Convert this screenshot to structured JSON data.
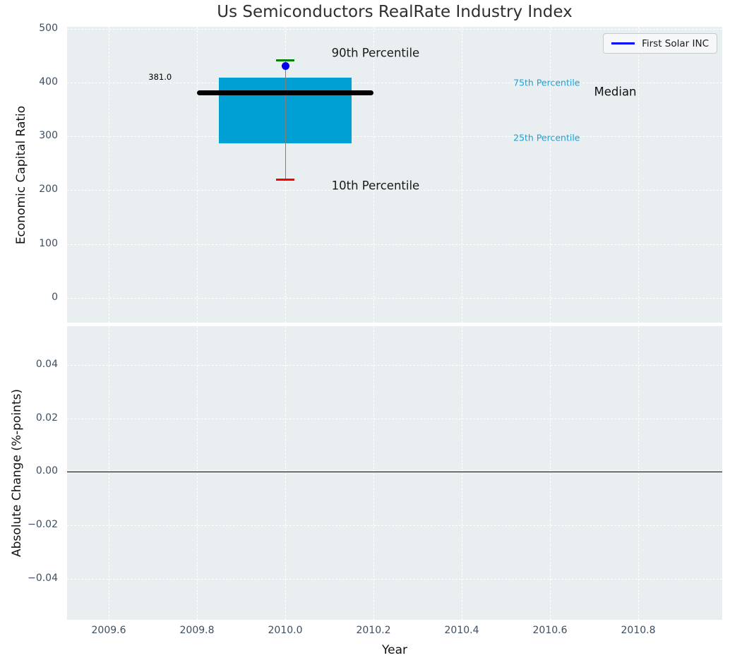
{
  "chart_data": {
    "type": "boxplot",
    "title": "Us Semiconductors RealRate Industry Index",
    "xlabel": "Year",
    "xlim": [
      2009.5056,
      2010.9904
    ],
    "xticks": [
      {
        "v": 2009.6,
        "label": "2009.6"
      },
      {
        "v": 2009.8,
        "label": "2009.8"
      },
      {
        "v": 2010.0,
        "label": "2010.0"
      },
      {
        "v": 2010.2,
        "label": "2010.2"
      },
      {
        "v": 2010.4,
        "label": "2010.4"
      },
      {
        "v": 2010.6,
        "label": "2010.6"
      },
      {
        "v": 2010.8,
        "label": "2010.8"
      }
    ],
    "legend": {
      "label": "First Solar INC",
      "line_color": "#0000ff",
      "position": "upper-right"
    },
    "style": {
      "axes_bg": "#e9eef0",
      "grid_color": "#ffffff",
      "tick_color": "#3d4e63",
      "label_color": "#111111"
    },
    "subplots": [
      {
        "name": "economic-capital-ratio",
        "ylabel": "Economic Capital Ratio",
        "ylim": [
          -45.9,
          503.3
        ],
        "yticks": [
          {
            "v": 0,
            "label": "0"
          },
          {
            "v": 100,
            "label": "100"
          },
          {
            "v": 200,
            "label": "200"
          },
          {
            "v": 300,
            "label": "300"
          },
          {
            "v": 400,
            "label": "400"
          },
          {
            "v": 500,
            "label": "500"
          }
        ],
        "boxplot": {
          "x": 2010.0,
          "box_width": 0.3,
          "median_width": 0.4,
          "cap_width": 0.042,
          "p10": 219,
          "p25": 287,
          "median": 381.0,
          "p75": 409,
          "p90": 441,
          "box_color": "#009fd4",
          "median_color": "#000000",
          "whisker_color": "#808080",
          "p90_cap_color": "#008000",
          "p10_cap_color": "#ff0000"
        },
        "company_point": {
          "label": "First Solar INC",
          "x": 2010.0,
          "y": 430,
          "color": "#0000ee"
        },
        "annotations": [
          {
            "text": "381.0",
            "x": 2009.69,
            "y": 410,
            "color": "#000000",
            "size": 11.5
          },
          {
            "text": "90th Percentile",
            "x": 2010.105,
            "y": 455,
            "color": "#1a1a1a",
            "size": 16.5
          },
          {
            "text": "10th Percentile",
            "x": 2010.105,
            "y": 208,
            "color": "#1a1a1a",
            "size": 16.5
          },
          {
            "text": "75th Percentile",
            "x": 2010.517,
            "y": 400,
            "color": "#1f9fd4",
            "size": 12.5
          },
          {
            "text": "25th Percentile",
            "x": 2010.517,
            "y": 297,
            "color": "#1f9fd4",
            "size": 12.5
          },
          {
            "text": "Median",
            "x": 2010.7,
            "y": 383,
            "color": "#111111",
            "size": 16.5
          }
        ]
      },
      {
        "name": "absolute-change",
        "ylabel": "Absolute Change (%-points)",
        "ylim": [
          -0.0553,
          0.0545
        ],
        "yticks": [
          {
            "v": 0.04,
            "label": "0.04"
          },
          {
            "v": 0.02,
            "label": "0.02"
          },
          {
            "v": 0,
            "label": "0.00"
          },
          {
            "v": -0.02,
            "label": "−0.02"
          },
          {
            "v": -0.04,
            "label": "−0.04"
          }
        ],
        "zero_line": {
          "y": 0,
          "color": "#000000"
        }
      }
    ]
  }
}
